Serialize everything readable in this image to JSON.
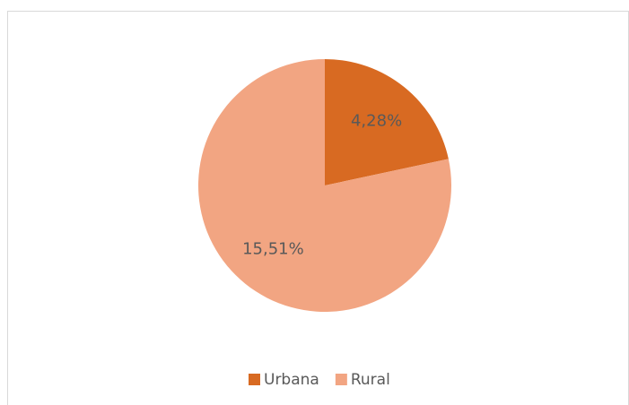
{
  "chart_data": {
    "type": "pie",
    "categories": [
      "Urbana",
      "Rural"
    ],
    "values": [
      4.28,
      15.51
    ],
    "value_labels": [
      "4,28%",
      "15,51%"
    ],
    "colors": [
      "#d86a22",
      "#f2a582"
    ],
    "legend": "bottom"
  }
}
